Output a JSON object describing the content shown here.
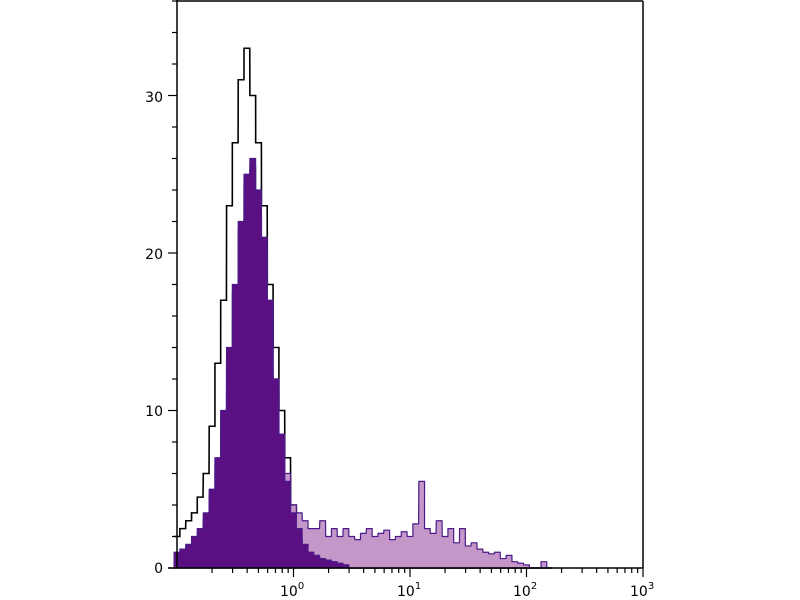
{
  "chart_data": {
    "type": "histogram",
    "title": "",
    "xlabel": "",
    "ylabel": "",
    "x_scale": "log",
    "xlim": [
      0.1,
      1000
    ],
    "ylim": [
      0,
      36
    ],
    "grid": false,
    "legend": "none",
    "y_ticks": [
      0,
      10,
      20,
      30
    ],
    "y_tick_labels": [
      "0",
      "10",
      "20",
      "30"
    ],
    "x_ticks": [
      1,
      10,
      100,
      1000
    ],
    "x_tick_labels": [
      {
        "base": "10",
        "exp": "0"
      },
      {
        "base": "10",
        "exp": "1"
      },
      {
        "base": "10",
        "exp": "2"
      },
      {
        "base": "10",
        "exp": "3"
      }
    ],
    "x": [
      0.1,
      0.112,
      0.126,
      0.141,
      0.158,
      0.178,
      0.2,
      0.224,
      0.251,
      0.282,
      0.316,
      0.355,
      0.398,
      0.447,
      0.501,
      0.562,
      0.631,
      0.708,
      0.794,
      0.891,
      1,
      1.12,
      1.26,
      1.41,
      1.58,
      1.78,
      2,
      2.24,
      2.51,
      2.82,
      3.16,
      3.55,
      3.98,
      4.47,
      5.01,
      5.62,
      6.31,
      7.08,
      7.94,
      8.91,
      10,
      11.2,
      12.6,
      14.1,
      15.8,
      17.8,
      20,
      22.4,
      25.1,
      28.2,
      31.6,
      35.5,
      39.8,
      44.7,
      50.1,
      56.2,
      63.1,
      70.8,
      79.4,
      89.1,
      100,
      112,
      126,
      141,
      158
    ],
    "series": [
      {
        "style": "line",
        "color": "#000000",
        "values": [
          2,
          2.5,
          3,
          3.5,
          4.5,
          6,
          9,
          13,
          17,
          23,
          27,
          31,
          33,
          30,
          27,
          23,
          18,
          14,
          10,
          7,
          4,
          2.5,
          2,
          1.5,
          1,
          0.8,
          0.6,
          0.5,
          0.3,
          0.2,
          0,
          0,
          0,
          0,
          0,
          0,
          0,
          0,
          0,
          0,
          0,
          0,
          0,
          0,
          0,
          0,
          0,
          0,
          0,
          0,
          0,
          0,
          0,
          0,
          0,
          0,
          0,
          0,
          0,
          0,
          0,
          0,
          0,
          0,
          0
        ]
      },
      {
        "style": "filled",
        "color": "#c597c9",
        "outline": "#4a1a8a",
        "values": [
          0.8,
          1,
          1.2,
          1.6,
          2.2,
          3,
          4.5,
          6.5,
          9.5,
          13.5,
          17.5,
          21.5,
          24.5,
          25.5,
          23.5,
          20.5,
          16.5,
          12,
          8.5,
          6,
          4,
          3.5,
          3,
          2.5,
          2.5,
          3,
          2,
          2.5,
          2,
          2.5,
          2,
          1.8,
          2.2,
          2.5,
          2,
          2.2,
          2.4,
          1.8,
          2,
          2.3,
          2,
          2.8,
          5.5,
          2.5,
          2.2,
          3,
          2,
          2.5,
          1.6,
          2.5,
          1.4,
          1.6,
          1.2,
          1,
          0.9,
          1,
          0.6,
          0.8,
          0.4,
          0.3,
          0.2,
          0,
          0,
          0.4,
          0
        ]
      },
      {
        "style": "filled",
        "color": "#5a1082",
        "outline": "#4a1a8a",
        "values": [
          1,
          1.2,
          1.5,
          2,
          2.5,
          3.5,
          5,
          7,
          10,
          14,
          18,
          22,
          25,
          26,
          24,
          21,
          17,
          12,
          8.5,
          5.5,
          3.5,
          2.5,
          1.5,
          1,
          0.8,
          0.6,
          0.5,
          0.4,
          0.3,
          0.2,
          0,
          0,
          0,
          0,
          0,
          0,
          0,
          0,
          0,
          0,
          0,
          0,
          0,
          0,
          0,
          0,
          0,
          0,
          0,
          0,
          0,
          0,
          0,
          0,
          0,
          0,
          0,
          0,
          0,
          0,
          0,
          0,
          0,
          0,
          0
        ]
      }
    ]
  }
}
